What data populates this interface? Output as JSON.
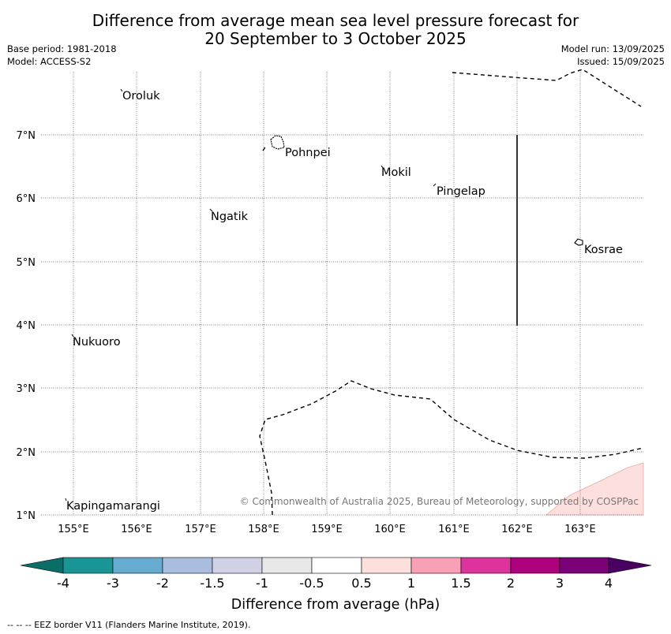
{
  "header": {
    "title_line1": "Difference from average mean sea level pressure forecast for",
    "title_line2": "20 September to 3 October 2025",
    "base_period": "Base period: 1981-2018",
    "model": "Model: ACCESS-S2",
    "model_run": "Model run: 13/09/2025",
    "issued": "Issued: 15/09/2025"
  },
  "map": {
    "x_ticks": [
      "155°E",
      "156°E",
      "157°E",
      "158°E",
      "159°E",
      "160°E",
      "161°E",
      "162°E",
      "163°E"
    ],
    "y_ticks": [
      "7°N",
      "6°N",
      "5°N",
      "4°N",
      "3°N",
      "2°N",
      "1°N"
    ],
    "places": {
      "oroluk": "Oroluk",
      "pohnpei": "Pohnpei",
      "mokil": "Mokil",
      "pingelap": "Pingelap",
      "ngatik": "Ngatik",
      "kosrae": "Kosrae",
      "nukuoro": "Nukuoro",
      "kapingamarangi": "Kapingamarangi"
    },
    "copyright": "© Commonwealth of Australia 2025, Bureau of Meteorology, supported by COSPPac",
    "positive_anomaly_color": "#fde0dd"
  },
  "colorbar": {
    "ticks": [
      "-4",
      "-3",
      "-2",
      "-1.5",
      "-1",
      "-0.5",
      "0.5",
      "1",
      "1.5",
      "2",
      "3",
      "4"
    ],
    "colors": [
      "#0a6e67",
      "#1a9596",
      "#67abd0",
      "#a9bddf",
      "#d0d1e7",
      "#e8e8e8",
      "#ffffff",
      "#fde0dd",
      "#f99fb6",
      "#dc349c",
      "#ae017e",
      "#7a0177",
      "#4a0060"
    ],
    "label": "Difference from average (hPa)"
  },
  "footnote": "--  --  -- EEZ border V11 (Flanders Marine Institute, 2019)."
}
